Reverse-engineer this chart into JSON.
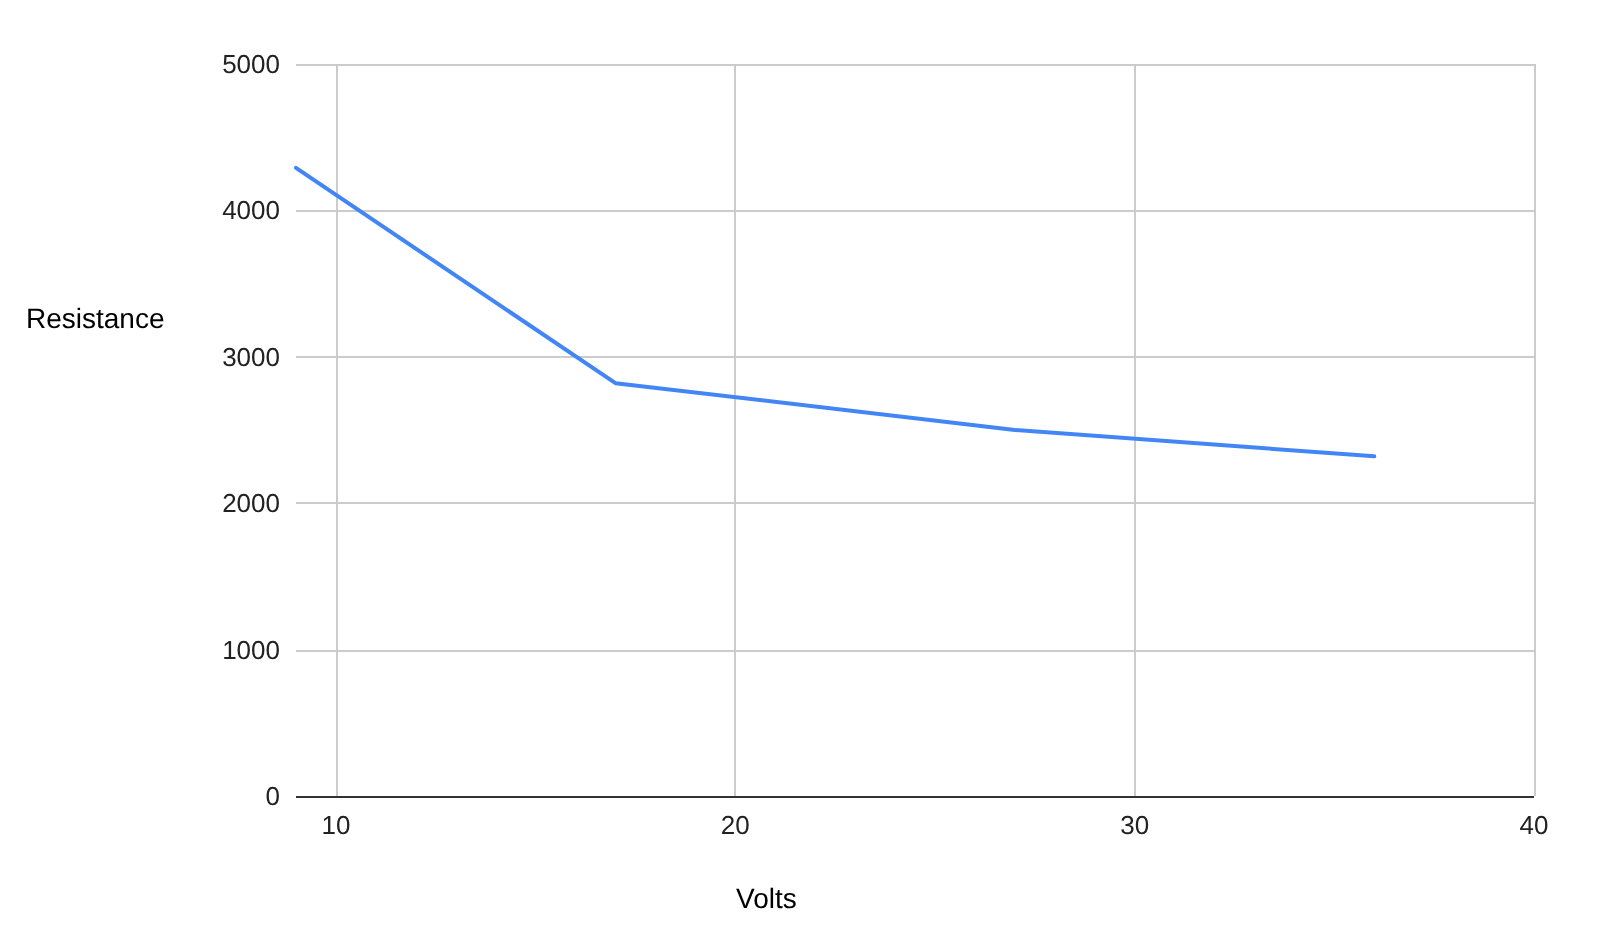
{
  "chart_data": {
    "type": "line",
    "xlabel": "Volts",
    "ylabel": "Resistance",
    "x": [
      9,
      17,
      27,
      36
    ],
    "series": [
      {
        "color": "#4285f4",
        "values": [
          4290,
          2820,
          2500,
          2320
        ]
      }
    ],
    "xlim": [
      9,
      40
    ],
    "xticks": [
      10,
      20,
      30,
      40
    ],
    "ylim": [
      0,
      5000
    ],
    "yticks": [
      0,
      1000,
      2000,
      3000,
      4000,
      5000
    ],
    "grid": true,
    "marker": "none",
    "line_style": "solid"
  }
}
